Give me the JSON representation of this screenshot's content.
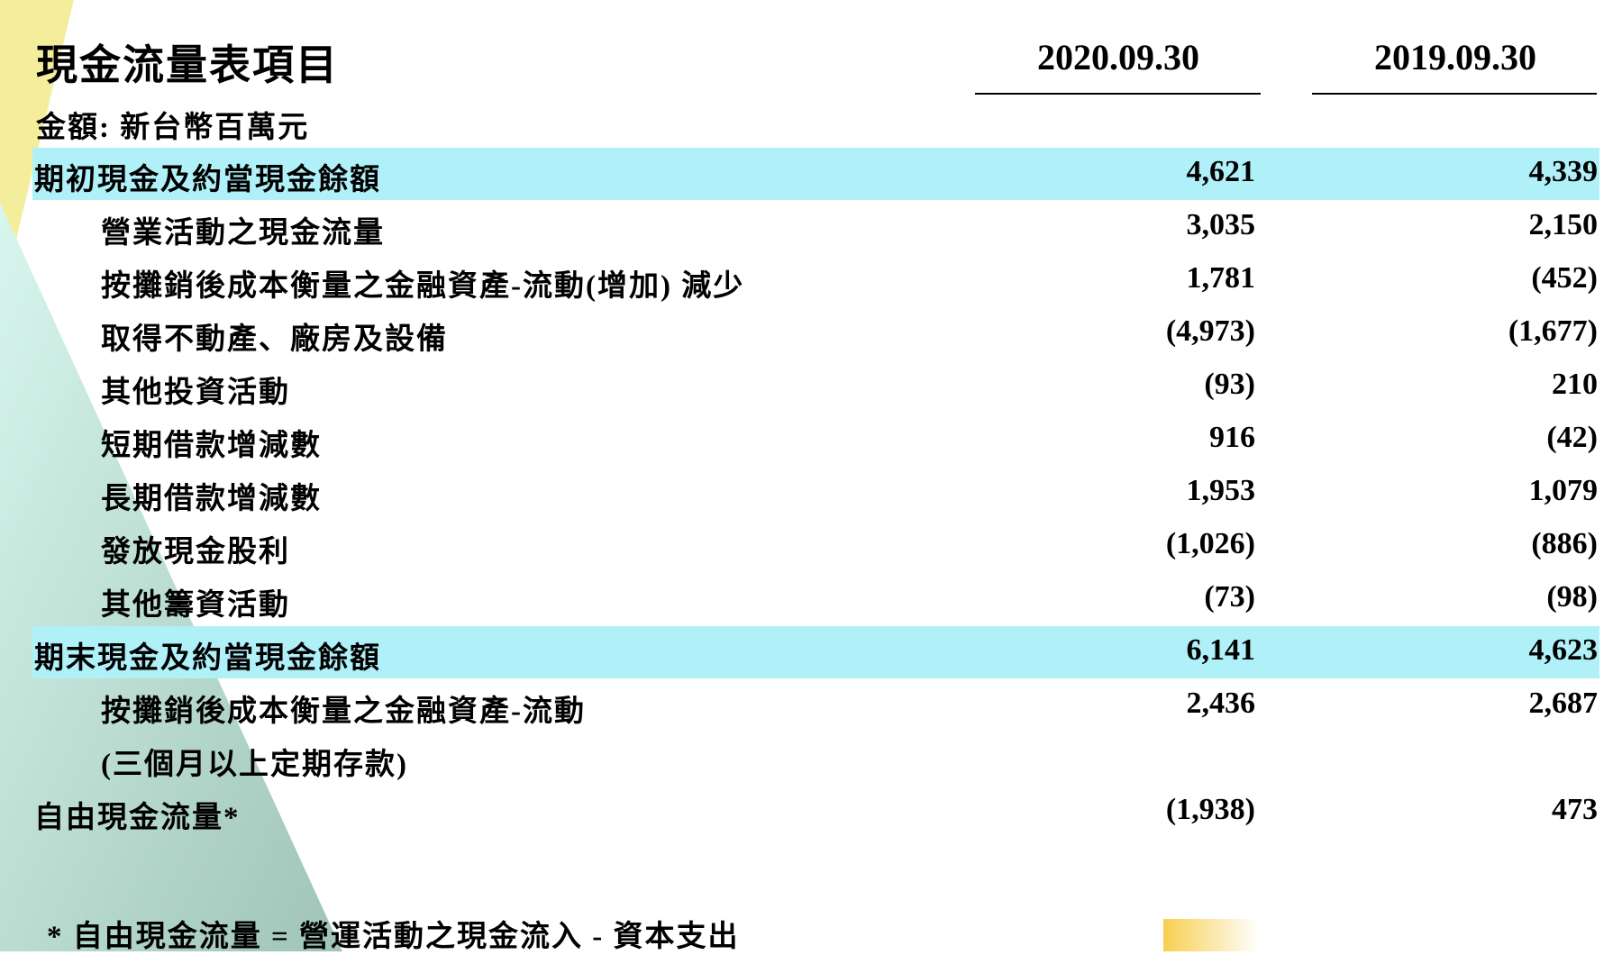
{
  "title": "現金流量表項目",
  "unit_label": "金額: 新台幣百萬元",
  "columns": [
    "2020.09.30",
    "2019.09.30"
  ],
  "colors": {
    "highlight": "#b0f0f8",
    "yellow_shape": "#f4ee9c",
    "teal_shape": "#a9cdbf",
    "accent_gradient": "#f7cf50"
  },
  "rows": [
    {
      "label": "期初現金及約當現金餘額",
      "v2020": "4,621",
      "v2019": "4,339",
      "highlight": true,
      "indent": false
    },
    {
      "label": "營業活動之現金流量",
      "v2020": "3,035",
      "v2019": "2,150",
      "highlight": false,
      "indent": true
    },
    {
      "label": "按攤銷後成本衡量之金融資產-流動(增加) 減少",
      "v2020": "1,781",
      "v2019": "(452)",
      "highlight": false,
      "indent": true
    },
    {
      "label": "取得不動產、廠房及設備",
      "v2020": "(4,973)",
      "v2019": "(1,677)",
      "highlight": false,
      "indent": true
    },
    {
      "label": "其他投資活動",
      "v2020": "(93)",
      "v2019": "210",
      "highlight": false,
      "indent": true
    },
    {
      "label": "短期借款增減數",
      "v2020": "916",
      "v2019": "(42)",
      "highlight": false,
      "indent": true
    },
    {
      "label": "長期借款增減數",
      "v2020": "1,953",
      "v2019": "1,079",
      "highlight": false,
      "indent": true
    },
    {
      "label": "發放現金股利",
      "v2020": "(1,026)",
      "v2019": "(886)",
      "highlight": false,
      "indent": true
    },
    {
      "label": "其他籌資活動",
      "v2020": "(73)",
      "v2019": "(98)",
      "highlight": false,
      "indent": true
    },
    {
      "label": "期末現金及約當現金餘額",
      "v2020": "6,141",
      "v2019": "4,623",
      "highlight": true,
      "indent": false
    },
    {
      "label": "按攤銷後成本衡量之金融資產-流動",
      "v2020": "2,436",
      "v2019": "2,687",
      "highlight": false,
      "indent": true
    },
    {
      "label": "(三個月以上定期存款)",
      "v2020": "",
      "v2019": "",
      "highlight": false,
      "indent": true
    },
    {
      "label": "自由現金流量*",
      "v2020": "(1,938)",
      "v2019": "473",
      "highlight": false,
      "indent": false
    }
  ],
  "footnote": "* 自由現金流量 = 營運活動之現金流入 - 資本支出"
}
